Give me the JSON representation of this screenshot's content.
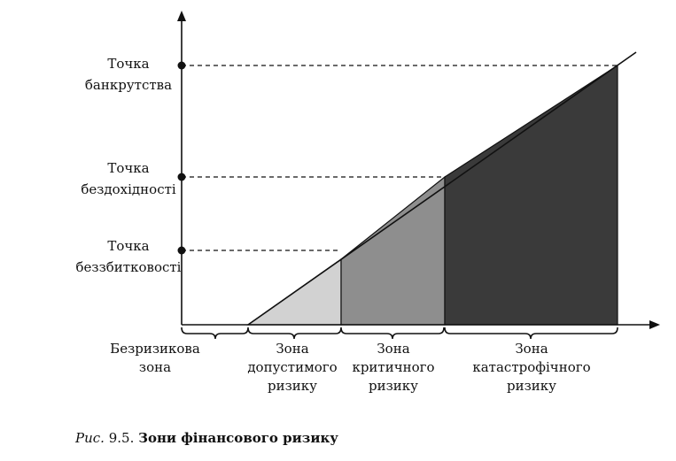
{
  "points": [
    {
      "line1": "Точка",
      "line2": "банкрутства"
    },
    {
      "line1": "Точка",
      "line2": "бездохідності"
    },
    {
      "line1": "Точка",
      "line2": "беззбитковості"
    }
  ],
  "zones": [
    {
      "lines": [
        "Безризикова",
        "зона"
      ]
    },
    {
      "lines": [
        "Зона",
        "допустимого",
        "ризику"
      ]
    },
    {
      "lines": [
        "Зона",
        "критичного",
        "ризику"
      ]
    },
    {
      "lines": [
        "Зона",
        "катастрофічного",
        "ризику"
      ]
    }
  ],
  "caption": {
    "label": "Рис.",
    "number": "9.5.",
    "text": "Зони фінансового ризику"
  }
}
